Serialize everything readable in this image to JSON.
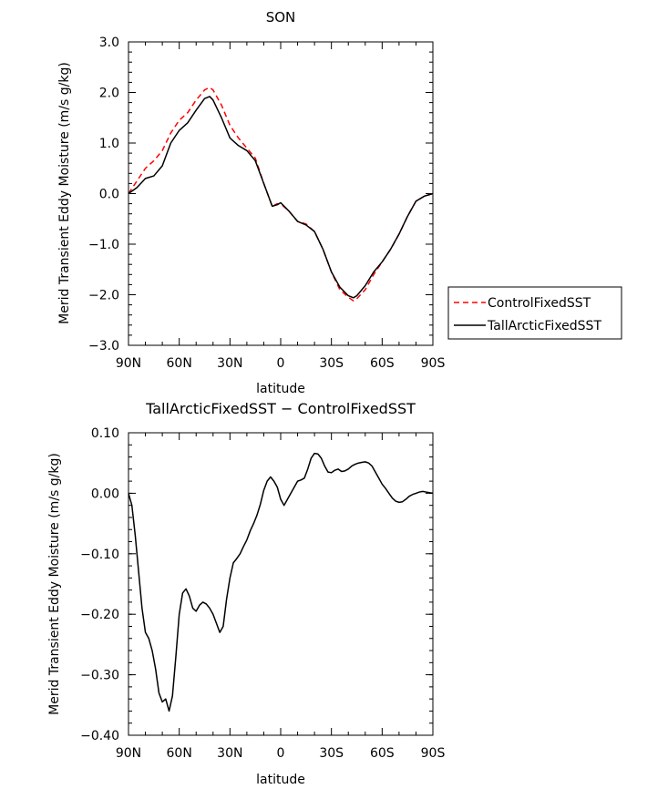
{
  "chart_data": [
    {
      "type": "line",
      "title": "SON",
      "xlabel": "latitude",
      "ylabel": "Merid Transient Eddy Moisture (m/s g/kg)",
      "xlim": [
        90,
        -90
      ],
      "ylim": [
        -3.0,
        3.0
      ],
      "x_ticks": [
        90,
        60,
        30,
        0,
        -30,
        -60,
        -90
      ],
      "x_tick_labels": [
        "90N",
        "60N",
        "30N",
        "0",
        "30S",
        "60S",
        "90S"
      ],
      "y_ticks": [
        3.0,
        2.0,
        1.0,
        0.0,
        -1.0,
        -2.0,
        -3.0
      ],
      "y_tick_labels": [
        "3.0",
        "2.0",
        "1.0",
        "0.0",
        "−1.0",
        "−2.0",
        "−3.0"
      ],
      "legend_position": "right",
      "series": [
        {
          "name": "ControlFixedSST",
          "color": "#ff0000",
          "style": "dashed",
          "x": [
            90,
            85,
            80,
            75,
            70,
            65,
            60,
            55,
            50,
            45,
            42,
            40,
            35,
            30,
            25,
            20,
            15,
            10,
            5,
            2,
            0,
            -5,
            -10,
            -15,
            -20,
            -25,
            -30,
            -35,
            -40,
            -43,
            -45,
            -50,
            -55,
            -60,
            -65,
            -70,
            -75,
            -80,
            -85,
            -90
          ],
          "y": [
            0.0,
            0.25,
            0.5,
            0.65,
            0.85,
            1.2,
            1.45,
            1.6,
            1.85,
            2.05,
            2.1,
            2.05,
            1.75,
            1.35,
            1.1,
            0.9,
            0.7,
            0.2,
            -0.25,
            -0.2,
            -0.2,
            -0.35,
            -0.55,
            -0.6,
            -0.75,
            -1.1,
            -1.55,
            -1.9,
            -2.05,
            -2.12,
            -2.08,
            -1.9,
            -1.6,
            -1.35,
            -1.1,
            -0.8,
            -0.45,
            -0.15,
            -0.05,
            0.0
          ]
        },
        {
          "name": "TallArcticFixedSST",
          "color": "#000000",
          "style": "solid",
          "x": [
            90,
            85,
            80,
            75,
            70,
            65,
            60,
            55,
            50,
            45,
            42,
            40,
            35,
            30,
            25,
            20,
            15,
            10,
            5,
            2,
            0,
            -5,
            -10,
            -15,
            -20,
            -25,
            -30,
            -35,
            -40,
            -43,
            -45,
            -50,
            -55,
            -60,
            -65,
            -70,
            -75,
            -80,
            -85,
            -90
          ],
          "y": [
            0.0,
            0.12,
            0.3,
            0.35,
            0.55,
            1.0,
            1.25,
            1.4,
            1.65,
            1.88,
            1.92,
            1.85,
            1.5,
            1.1,
            0.95,
            0.85,
            0.65,
            0.2,
            -0.25,
            -0.22,
            -0.18,
            -0.35,
            -0.55,
            -0.62,
            -0.75,
            -1.1,
            -1.55,
            -1.85,
            -2.02,
            -2.06,
            -2.02,
            -1.82,
            -1.55,
            -1.35,
            -1.1,
            -0.8,
            -0.45,
            -0.15,
            -0.05,
            0.0
          ]
        }
      ]
    },
    {
      "type": "line",
      "title": "TallArcticFixedSST − ControlFixedSST",
      "xlabel": "latitude",
      "ylabel": "Merid Transient Eddy Moisture (m/s g/kg)",
      "xlim": [
        90,
        -90
      ],
      "ylim": [
        -0.4,
        0.1
      ],
      "x_ticks": [
        90,
        60,
        30,
        0,
        -30,
        -60,
        -90
      ],
      "x_tick_labels": [
        "90N",
        "60N",
        "30N",
        "0",
        "30S",
        "60S",
        "90S"
      ],
      "y_ticks": [
        0.1,
        0.0,
        -0.1,
        -0.2,
        -0.3,
        -0.4
      ],
      "y_tick_labels": [
        "0.10",
        "0.00",
        "−0.10",
        "−0.20",
        "−0.30",
        "−0.40"
      ],
      "series": [
        {
          "color": "#000000",
          "style": "solid",
          "x": [
            90,
            88,
            86,
            84,
            82,
            80,
            78,
            76,
            74,
            72,
            70,
            68,
            66,
            64,
            62,
            60,
            58,
            56,
            54,
            52,
            50,
            48,
            46,
            44,
            42,
            40,
            38,
            36,
            34,
            32,
            30,
            28,
            26,
            24,
            22,
            20,
            18,
            16,
            14,
            12,
            10,
            8,
            6,
            4,
            2,
            0,
            -2,
            -4,
            -6,
            -8,
            -10,
            -12,
            -14,
            -16,
            -18,
            -20,
            -22,
            -24,
            -26,
            -28,
            -30,
            -32,
            -34,
            -36,
            -38,
            -40,
            -42,
            -44,
            -46,
            -48,
            -50,
            -52,
            -54,
            -56,
            -58,
            -60,
            -62,
            -64,
            -66,
            -68,
            -70,
            -72,
            -74,
            -76,
            -78,
            -80,
            -82,
            -84,
            -86,
            -88,
            -90
          ],
          "y": [
            0.0,
            -0.02,
            -0.07,
            -0.13,
            -0.19,
            -0.23,
            -0.24,
            -0.26,
            -0.29,
            -0.33,
            -0.345,
            -0.34,
            -0.36,
            -0.335,
            -0.27,
            -0.2,
            -0.165,
            -0.158,
            -0.17,
            -0.19,
            -0.195,
            -0.185,
            -0.18,
            -0.183,
            -0.19,
            -0.2,
            -0.215,
            -0.23,
            -0.22,
            -0.175,
            -0.14,
            -0.115,
            -0.108,
            -0.1,
            -0.088,
            -0.077,
            -0.062,
            -0.05,
            -0.036,
            -0.018,
            0.005,
            0.02,
            0.027,
            0.02,
            0.01,
            -0.01,
            -0.02,
            -0.01,
            0.0,
            0.01,
            0.02,
            0.022,
            0.025,
            0.04,
            0.058,
            0.066,
            0.065,
            0.058,
            0.045,
            0.035,
            0.034,
            0.038,
            0.04,
            0.036,
            0.037,
            0.04,
            0.045,
            0.048,
            0.05,
            0.051,
            0.052,
            0.05,
            0.045,
            0.035,
            0.025,
            0.015,
            0.008,
            0.0,
            -0.008,
            -0.013,
            -0.015,
            -0.014,
            -0.01,
            -0.005,
            -0.002,
            0.0,
            0.002,
            0.003,
            0.002,
            0.001,
            0.0
          ]
        }
      ]
    }
  ]
}
